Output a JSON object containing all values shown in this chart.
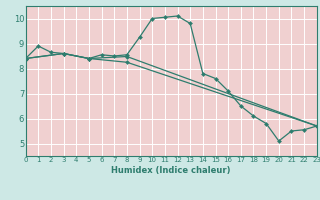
{
  "xlabel": "Humidex (Indice chaleur)",
  "background_color": "#cde8e5",
  "plot_bg_color": "#f0d0d0",
  "grid_color": "#ffffff",
  "line_color": "#2e7d6e",
  "xlim": [
    0,
    23
  ],
  "ylim": [
    4.5,
    10.5
  ],
  "xticks": [
    0,
    1,
    2,
    3,
    4,
    5,
    6,
    7,
    8,
    9,
    10,
    11,
    12,
    13,
    14,
    15,
    16,
    17,
    18,
    19,
    20,
    21,
    22,
    23
  ],
  "yticks": [
    5,
    6,
    7,
    8,
    9,
    10
  ],
  "main_x": [
    0,
    1,
    2,
    3,
    5,
    6,
    7,
    8,
    9,
    10,
    11,
    12,
    13,
    14,
    15,
    16,
    17,
    18,
    19,
    20,
    21,
    22,
    23
  ],
  "main_y": [
    8.4,
    8.9,
    8.65,
    8.6,
    8.4,
    8.55,
    8.5,
    8.55,
    9.25,
    10.0,
    10.05,
    10.1,
    9.8,
    7.8,
    7.6,
    7.1,
    6.5,
    6.1,
    5.8,
    5.1,
    5.5,
    5.55,
    5.7
  ],
  "line1_x": [
    0,
    3,
    5,
    8,
    23
  ],
  "line1_y": [
    8.4,
    8.6,
    8.4,
    8.48,
    5.7
  ],
  "line2_x": [
    0,
    3,
    5,
    8,
    23
  ],
  "line2_y": [
    8.4,
    8.6,
    8.4,
    8.25,
    5.7
  ],
  "xlabel_fontsize": 6.0,
  "tick_fontsize": 5.0
}
